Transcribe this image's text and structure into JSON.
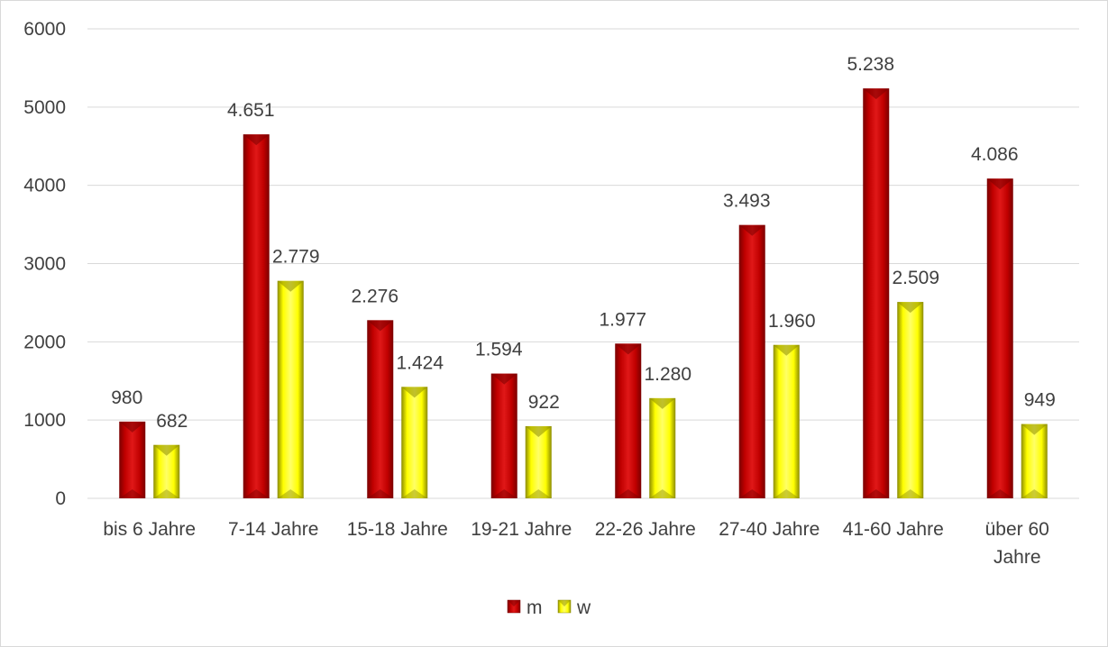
{
  "chart_data": {
    "type": "bar",
    "title": "",
    "xlabel": "",
    "ylabel": "",
    "ylim": [
      0,
      6000
    ],
    "yticks": [
      "0",
      "1000",
      "2000",
      "3000",
      "4000",
      "5000",
      "6000"
    ],
    "grid": true,
    "legend_position": "bottom",
    "categories": [
      [
        "bis 6 Jahre"
      ],
      [
        "7-14 Jahre"
      ],
      [
        "15-18 Jahre"
      ],
      [
        "19-21 Jahre"
      ],
      [
        "22-26 Jahre"
      ],
      [
        "27-40 Jahre"
      ],
      [
        "41-60 Jahre"
      ],
      [
        "über 60",
        "Jahre"
      ]
    ],
    "series": [
      {
        "name": "m",
        "color": "#c00000",
        "dark": "#7a0000",
        "light": "#e01818",
        "values": [
          980,
          4651,
          2276,
          1594,
          1977,
          3493,
          5238,
          4086
        ],
        "labels": [
          "980",
          "4.651",
          "2.276",
          "1.594",
          "1.977",
          "3.493",
          "5.238",
          "4.086"
        ]
      },
      {
        "name": "w",
        "color": "#ffff00",
        "dark": "#8c8c00",
        "light": "#ffff66",
        "values": [
          682,
          2779,
          1424,
          922,
          1280,
          1960,
          2509,
          949
        ],
        "labels": [
          "682",
          "2.779",
          "1.424",
          "922",
          "1.280",
          "1.960",
          "2.509",
          "949"
        ]
      }
    ]
  }
}
